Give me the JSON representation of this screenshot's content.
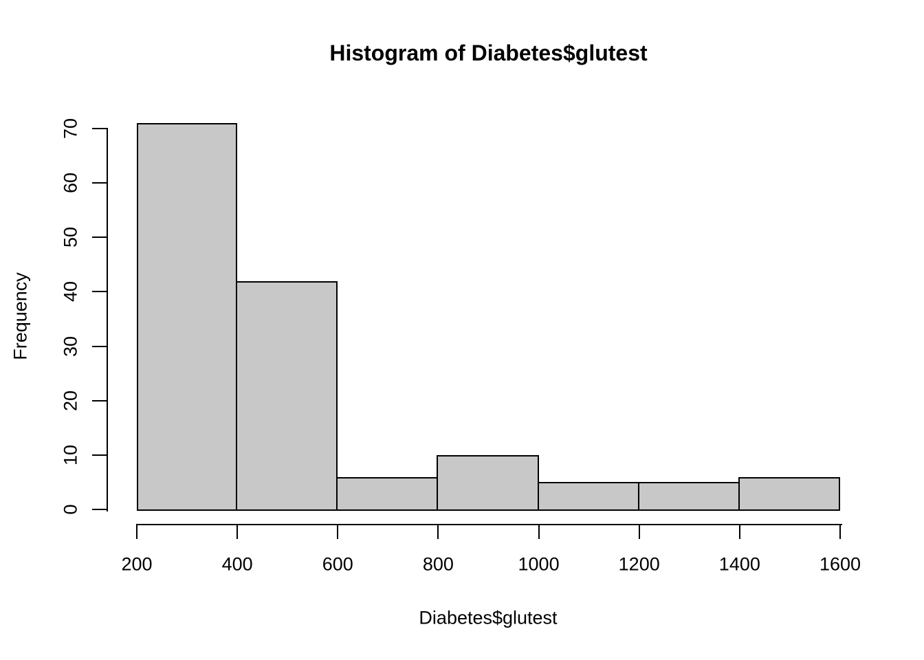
{
  "chart_data": {
    "type": "bar",
    "subtype": "histogram",
    "title": "Histogram of Diabetes$glutest",
    "xlabel": "Diabetes$glutest",
    "ylabel": "Frequency",
    "bin_edges": [
      200,
      400,
      600,
      800,
      1000,
      1200,
      1400,
      1600
    ],
    "counts": [
      71,
      42,
      6,
      10,
      5,
      5,
      6
    ],
    "x_ticks": [
      200,
      400,
      600,
      800,
      1000,
      1200,
      1400,
      1600
    ],
    "y_ticks": [
      0,
      10,
      20,
      30,
      40,
      50,
      60,
      70
    ],
    "xlim": [
      200,
      1600
    ],
    "ylim": [
      0,
      70
    ],
    "grid": "off",
    "legend": "none",
    "bar_fill_color": "#c8c8c8",
    "bar_border_color": "#000000",
    "axis_color": "#000000"
  }
}
